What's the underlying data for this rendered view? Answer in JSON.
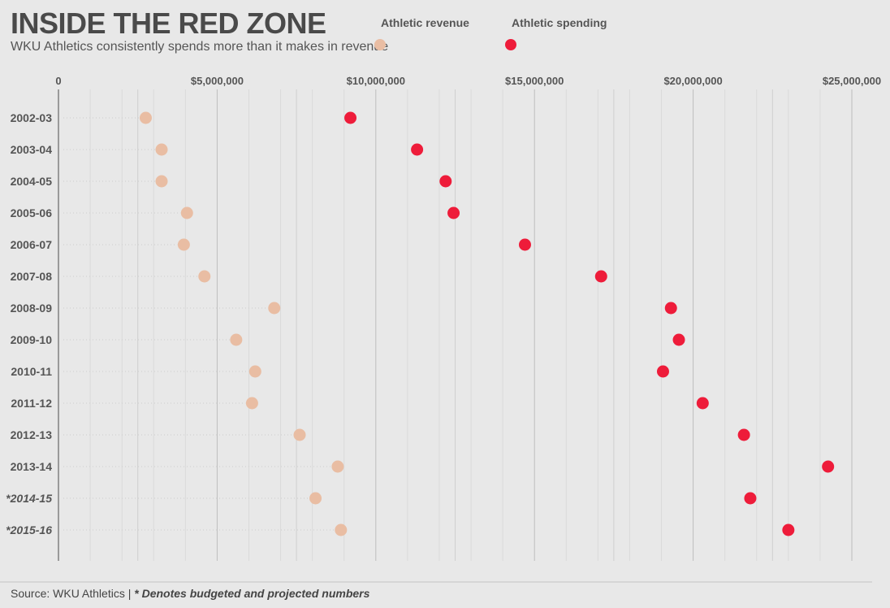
{
  "title": "INSIDE THE RED ZONE",
  "subtitle": "WKU Athletics consistently spends more than it makes in revenue",
  "footer": {
    "source": "Source: WKU Athletics |",
    "note": "* Denotes budgeted and projected numbers"
  },
  "colors": {
    "revenue": "#e9bda3",
    "spending": "#ee1c3a",
    "background": "#e8e8e8",
    "grid": "#cfcfcf"
  },
  "chart_data": {
    "type": "dumbbell",
    "xlim": [
      0,
      25000000
    ],
    "x_ticks": [
      {
        "value": 0,
        "label": "0"
      },
      {
        "value": 5000000,
        "label": "$5,000,000"
      },
      {
        "value": 10000000,
        "label": "$10,000,000"
      },
      {
        "value": 15000000,
        "label": "$15,000,000"
      },
      {
        "value": 20000000,
        "label": "$20,000,000"
      },
      {
        "value": 25000000,
        "label": "$25,000,000"
      }
    ],
    "grid": true,
    "legend": {
      "placement": "top-center",
      "revenue_label": "Athletic revenue",
      "spending_label": "Athletic spending"
    },
    "categories": [
      "2002-03",
      "2003-04",
      "2004-05",
      "2005-06",
      "2006-07",
      "2007-08",
      "2008-09",
      "2009-10",
      "2010-11",
      "2011-12",
      "2012-13",
      "2013-14",
      "*2014-15",
      "*2015-16"
    ],
    "italic_categories": [
      "*2014-15",
      "*2015-16"
    ],
    "series": [
      {
        "name": "Athletic revenue",
        "values": [
          2750000,
          3250000,
          3250000,
          4050000,
          3950000,
          4600000,
          6800000,
          5600000,
          6200000,
          6100000,
          7600000,
          8800000,
          8100000,
          8900000
        ]
      },
      {
        "name": "Athletic spending",
        "values": [
          9200000,
          11300000,
          12200000,
          12450000,
          14700000,
          17100000,
          19300000,
          19550000,
          19050000,
          20300000,
          21600000,
          24250000,
          21800000,
          23000000
        ]
      }
    ]
  }
}
